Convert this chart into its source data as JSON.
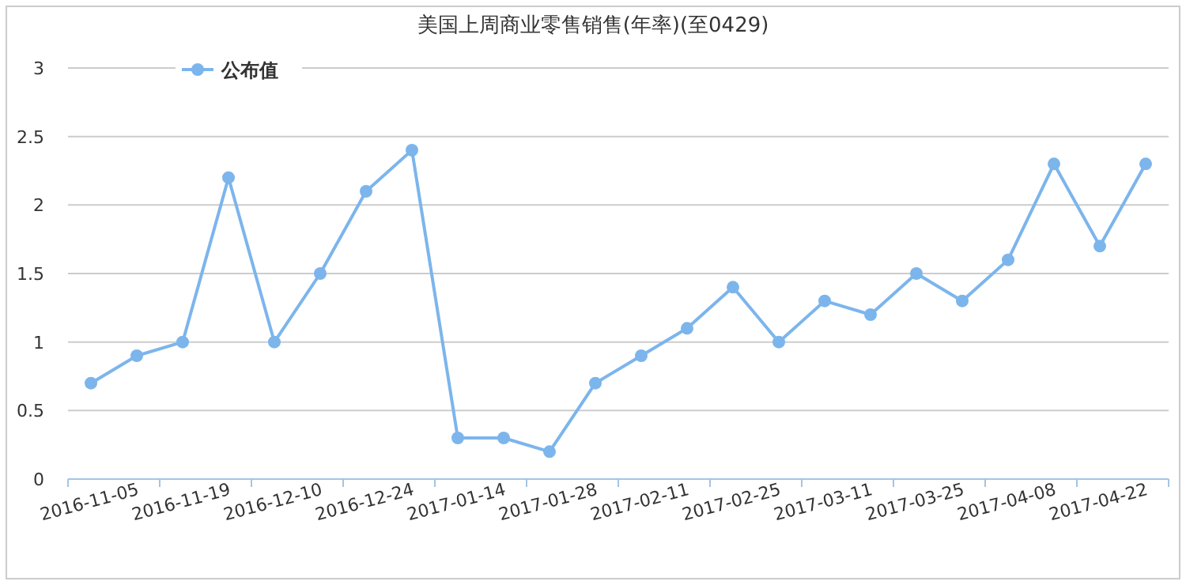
{
  "chart_data": {
    "type": "line",
    "title": "美国上周商业零售销售(年率)(至0429)",
    "categories": [
      "2016-11-05",
      null,
      "2016-11-19",
      null,
      "2016-12-10",
      null,
      "2016-12-24",
      null,
      "2017-01-14",
      null,
      "2017-01-28",
      null,
      "2017-02-11",
      null,
      "2017-02-25",
      null,
      "2017-03-11",
      null,
      "2017-03-25",
      null,
      "2017-04-08",
      null,
      "2017-04-22",
      null
    ],
    "series": [
      {
        "name": "公布值",
        "color": "#7cb5ec",
        "values": [
          0.7,
          0.9,
          1.0,
          2.2,
          1.0,
          1.5,
          2.1,
          2.4,
          0.3,
          0.3,
          0.2,
          0.7,
          0.9,
          1.1,
          1.4,
          1.0,
          1.3,
          1.2,
          1.5,
          1.3,
          1.6,
          2.3,
          1.7,
          2.3
        ]
      }
    ],
    "ylim": [
      0,
      3
    ],
    "yticks": [
      0,
      0.5,
      1,
      1.5,
      2,
      2.5,
      3
    ],
    "grid": "y",
    "legend": "top left",
    "marker": "circle"
  }
}
